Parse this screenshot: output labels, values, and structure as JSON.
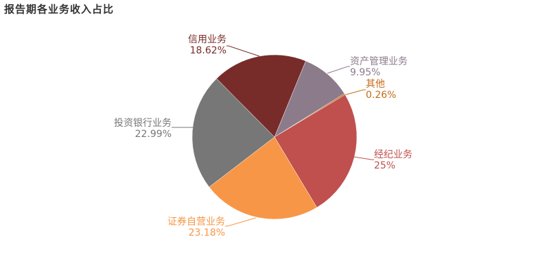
{
  "chart_data": {
    "type": "pie",
    "title": "报告期各业务收入占比",
    "categories": [
      "资产管理业务",
      "其他",
      "经纪业务",
      "证券自营业务",
      "投资银行业务",
      "信用业务"
    ],
    "values": [
      9.95,
      0.26,
      25,
      23.18,
      22.99,
      18.62
    ],
    "value_labels": [
      "9.95%",
      "0.26%",
      "25%",
      "23.18%",
      "22.99%",
      "18.62%"
    ],
    "colors": [
      "#8c7b8b",
      "#c46c1a",
      "#c0504d",
      "#f79646",
      "#777777",
      "#772c2a"
    ]
  }
}
